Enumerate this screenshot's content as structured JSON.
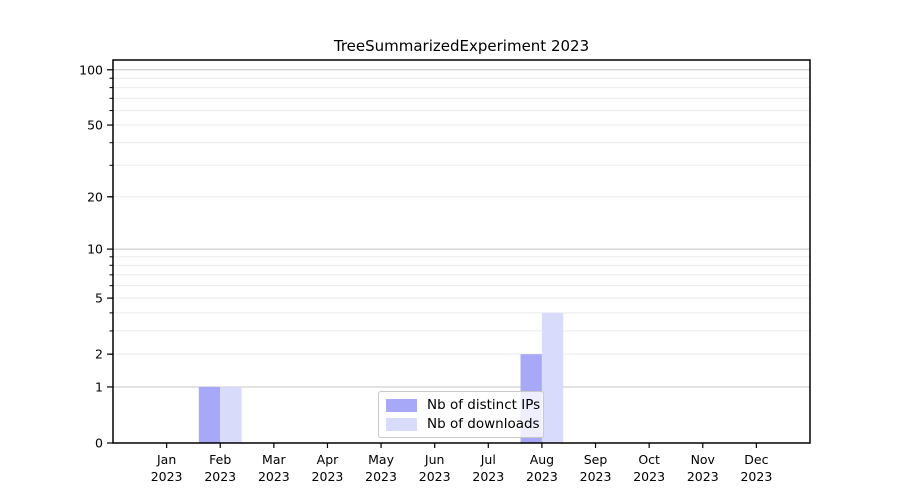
{
  "title": "TreeSummarizedExperiment 2023",
  "chart_data": {
    "type": "bar",
    "title": "TreeSummarizedExperiment 2023",
    "categories": [
      "Jan",
      "Feb",
      "Mar",
      "Apr",
      "May",
      "Jun",
      "Jul",
      "Aug",
      "Sep",
      "Oct",
      "Nov",
      "Dec"
    ],
    "year_label": "2023",
    "series": [
      {
        "name": "Nb of distinct IPs",
        "color": "#a8a8f8",
        "values": [
          0,
          1,
          0,
          0,
          0,
          0,
          0,
          2,
          0,
          0,
          0,
          0
        ]
      },
      {
        "name": "Nb of downloads",
        "color": "#d9dbfa",
        "values": [
          0,
          1,
          0,
          0,
          0,
          0,
          0,
          4,
          0,
          0,
          0,
          0
        ]
      }
    ],
    "yscale": "log1p",
    "yticks": [
      0,
      1,
      2,
      5,
      10,
      20,
      50,
      100
    ],
    "ylim": [
      0,
      113
    ],
    "grid": {
      "on": true,
      "major": [
        1,
        10,
        100
      ],
      "minor": [
        2,
        3,
        4,
        5,
        6,
        7,
        8,
        9,
        20,
        30,
        40,
        50,
        60,
        70,
        80,
        90
      ]
    },
    "legend_position": "bottom-center"
  },
  "legend": {
    "items": [
      {
        "label": "Nb of distinct IPs"
      },
      {
        "label": "Nb of downloads"
      }
    ]
  },
  "colors": {
    "ips_bar": "#a8a8f8",
    "downloads_bar": "#d9dbfa",
    "grid_major": "#c4c4c4",
    "grid_minor": "#ebebeb",
    "spine": "#000000",
    "text": "#000000",
    "legend_border": "#c8c8c8"
  }
}
